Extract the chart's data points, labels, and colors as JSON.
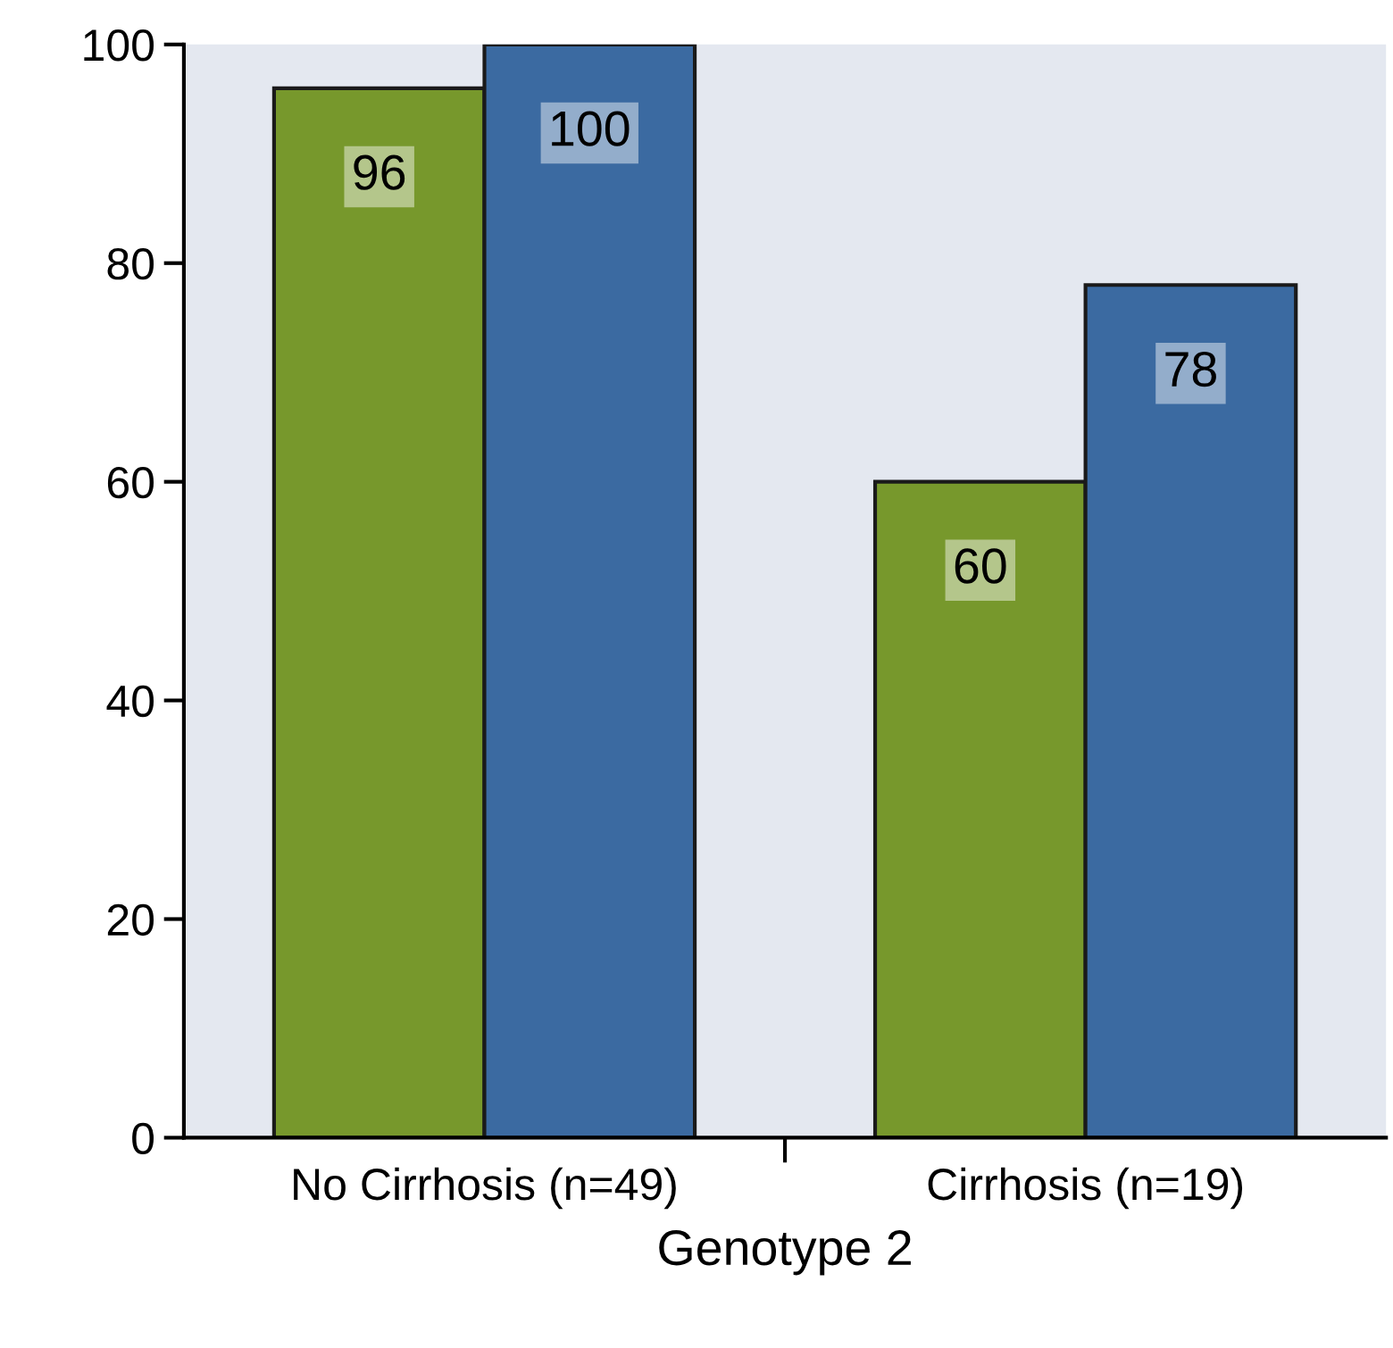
{
  "chart_data": {
    "type": "bar",
    "xlabel": "Genotype 2",
    "categories": [
      "No Cirrhosis (n=49)",
      "Cirrhosis (n=19)"
    ],
    "series": [
      {
        "color": "#77982c",
        "values": [
          96,
          60
        ]
      },
      {
        "color": "#3b6aa1",
        "values": [
          100,
          78
        ]
      }
    ],
    "ylim": [
      0,
      100
    ],
    "yticks": [
      0,
      20,
      40,
      60,
      80,
      100
    ],
    "data_labels": true,
    "grid": false,
    "legend": false
  }
}
